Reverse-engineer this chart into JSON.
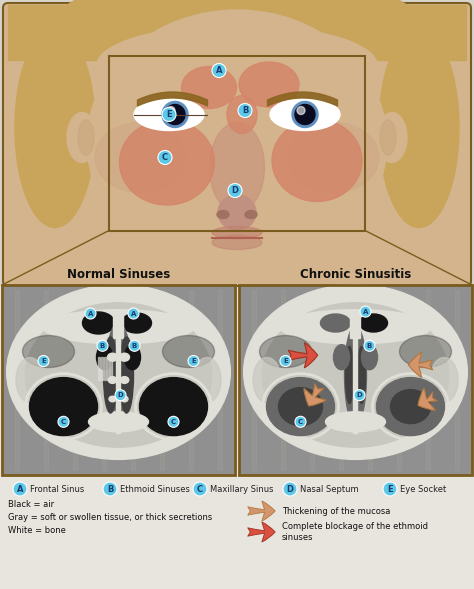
{
  "bg_color": "#e8e4de",
  "title_normal": "Normal Sinuses",
  "title_chronic": "Chronic Sinusitis",
  "legend_items": [
    {
      "label": "A",
      "text": "Frontal Sinus"
    },
    {
      "label": "B",
      "text": "Ethmoid Sinuses"
    },
    {
      "label": "C",
      "text": "Maxillary Sinus"
    },
    {
      "label": "D",
      "text": "Nasal Septum"
    },
    {
      "label": "E",
      "text": "Eye Socket"
    }
  ],
  "legend_left": [
    "Black = air",
    "Gray = soft or swollen tissue, or thick secretions",
    "White = bone"
  ],
  "legend_right_tan_text": "Thickening of the mucosa",
  "legend_right_red_text": "Complete blockage of the ethmoid\nsinuses",
  "box_border_color": "#7a5c1e",
  "label_circle_color": "#5bc8e8",
  "label_text_color": "#1a3a6b",
  "face_skin": "#d4b48c",
  "face_shadow": "#c4a07a",
  "hair_color": "#c8a060",
  "sinus_pink": "#d4856a",
  "sinus_pink_dark": "#c07060",
  "scan_mid_gray": "#909090",
  "scan_light": "#c8c8c0",
  "scan_white": "#e0dfd8",
  "scan_black": "#141414",
  "scan_dark_gray": "#404040",
  "scan_med_gray": "#686868",
  "arrow_tan": "#d4956a",
  "arrow_tan_dark": "#b07840",
  "arrow_red": "#d95040",
  "arrow_red_dark": "#a03020",
  "title_color": "#111111",
  "top_bg": "#d8d4cc"
}
